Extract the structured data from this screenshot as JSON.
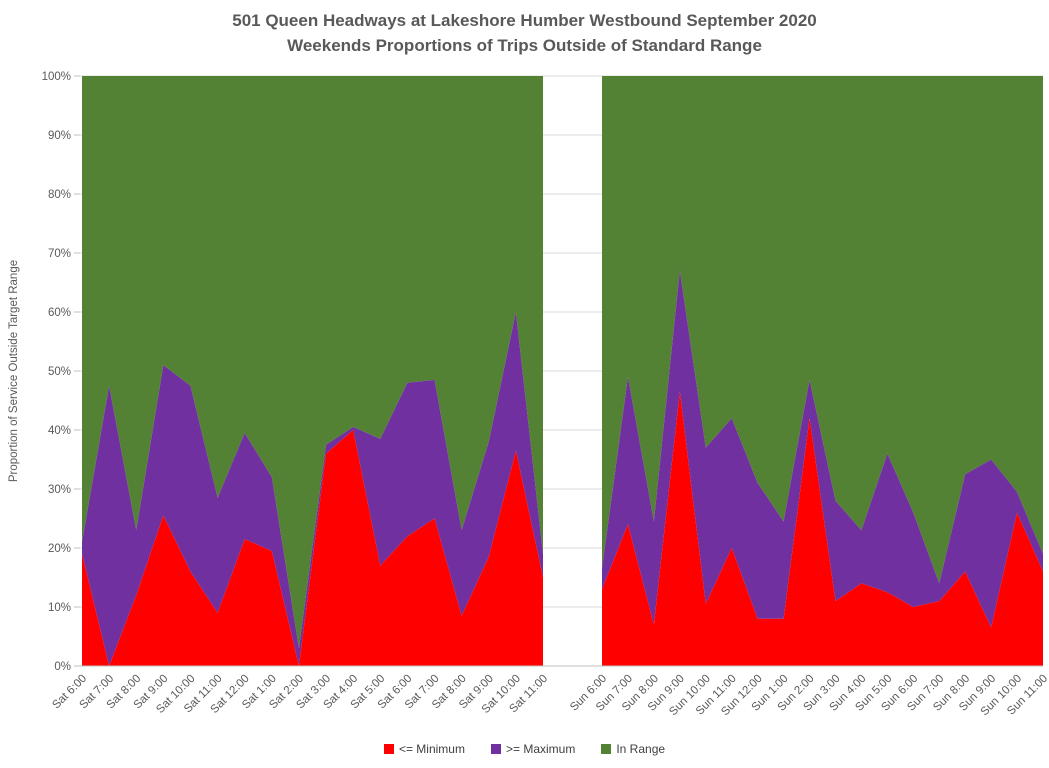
{
  "title": {
    "line1": "501 Queen Headways at Lakeshore Humber Westbound September 2020",
    "line2": "Weekends Proportions of Trips Outside of Standard Range"
  },
  "y_axis": {
    "title": "Proportion of Service Outside Target Range",
    "ticks": [
      {
        "value": 0,
        "label": "0%"
      },
      {
        "value": 10,
        "label": "10%"
      },
      {
        "value": 20,
        "label": "20%"
      },
      {
        "value": 30,
        "label": "30%"
      },
      {
        "value": 40,
        "label": "40%"
      },
      {
        "value": 50,
        "label": "50%"
      },
      {
        "value": 60,
        "label": "60%"
      },
      {
        "value": 70,
        "label": "70%"
      },
      {
        "value": 80,
        "label": "80%"
      },
      {
        "value": 90,
        "label": "90%"
      },
      {
        "value": 100,
        "label": "100%"
      }
    ]
  },
  "legend": [
    {
      "label": "<= Minimum",
      "color": "#FF0000"
    },
    {
      "label": ">= Maximum",
      "color": "#7030A0"
    },
    {
      "label": "In Range",
      "color": "#548235"
    }
  ],
  "colors": {
    "min": "#FF0000",
    "max": "#7030A0",
    "in_range": "#548235",
    "gridline": "#D9D9D9",
    "axis_text": "#595959",
    "title_text": "#595959"
  },
  "chart_data": {
    "type": "area",
    "stacking": "percent",
    "ylim": [
      0,
      100
    ],
    "grid": true,
    "legend_position": "bottom",
    "segments": [
      {
        "name": "Saturday",
        "categories": [
          "Sat 6:00",
          "Sat 7:00",
          "Sat 8:00",
          "Sat 9:00",
          "Sat 10:00",
          "Sat 11:00",
          "Sat 12:00",
          "Sat 1:00",
          "Sat 2:00",
          "Sat 3:00",
          "Sat 4:00",
          "Sat 5:00",
          "Sat 6:00",
          "Sat 7:00",
          "Sat 8:00",
          "Sat 9:00",
          "Sat 10:00",
          "Sat 11:00"
        ],
        "series": [
          {
            "name": "<= Minimum",
            "values": [
              19,
              0,
              12,
              25.5,
              16,
              9,
              21.5,
              19.5,
              0,
              36,
              40,
              17,
              22,
              25,
              8.5,
              18.5,
              36.5,
              15
            ]
          },
          {
            "name": ">= Maximum",
            "values": [
              2,
              47.5,
              11,
              25.5,
              31.5,
              19.5,
              18,
              12.5,
              3,
              1.5,
              0.5,
              21.5,
              26,
              23.5,
              14.5,
              19.5,
              23.5,
              4
            ]
          },
          {
            "name": "In Range",
            "values": [
              79,
              52.5,
              77,
              49,
              52.5,
              71.5,
              60.5,
              68,
              97,
              62.5,
              59.5,
              61.5,
              52,
              51.5,
              77,
              62,
              40,
              81
            ]
          }
        ]
      },
      {
        "name": "Sunday",
        "categories": [
          "Sun 6:00",
          "Sun 7:00",
          "Sun 8:00",
          "Sun 9:00",
          "Sun 10:00",
          "Sun 11:00",
          "Sun 12:00",
          "Sun 1:00",
          "Sun 2:00",
          "Sun 3:00",
          "Sun 4:00",
          "Sun 5:00",
          "Sun 6:00",
          "Sun 7:00",
          "Sun 8:00",
          "Sun 9:00",
          "Sun 10:00",
          "Sun 11:00"
        ],
        "series": [
          {
            "name": "<= Minimum",
            "values": [
              13,
              24,
              7,
              46.5,
              10.5,
              20,
              8,
              8,
              42,
              11,
              14,
              12.5,
              10,
              11,
              16,
              6.5,
              26,
              16
            ]
          },
          {
            "name": ">= Maximum",
            "values": [
              3.5,
              25,
              17.5,
              20.5,
              26.5,
              22,
              23,
              16.5,
              6.5,
              17,
              9,
              23.5,
              16,
              3,
              16.5,
              28.5,
              3.5,
              3
            ]
          },
          {
            "name": "In Range",
            "values": [
              83.5,
              51,
              75.5,
              33,
              63,
              58,
              69,
              75.5,
              51.5,
              72,
              77,
              64,
              74,
              86,
              67.5,
              65,
              70.5,
              81
            ]
          }
        ]
      }
    ]
  }
}
